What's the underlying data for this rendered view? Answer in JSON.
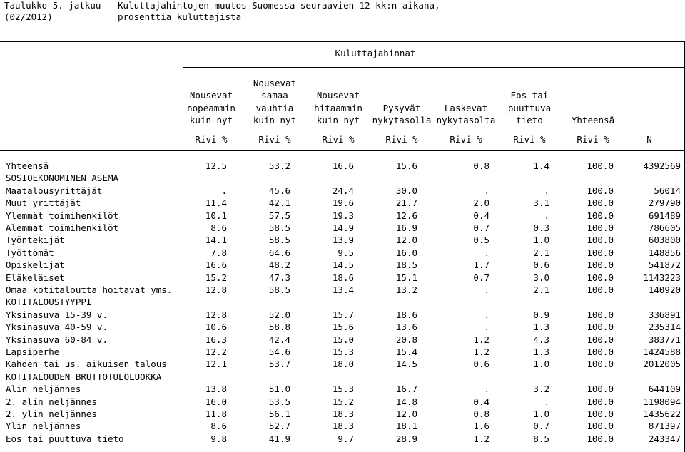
{
  "caption": {
    "table_no": "Taulukko 5. jatkuu",
    "period": "(02/2012)",
    "title_line1": "Kuluttajahintojen muutos Suomessa seuraavien 12 kk:n aikana,",
    "title_line2": "prosenttia kuluttajista"
  },
  "header": {
    "group_label": "Kuluttajahinnat",
    "columns": [
      {
        "lines": [
          "Nousevat",
          "nopeammin",
          "kuin nyt"
        ],
        "unit": "Rivi-%"
      },
      {
        "lines": [
          "Nousevat",
          "samaa",
          "vauhtia",
          "kuin nyt"
        ],
        "unit": "Rivi-%"
      },
      {
        "lines": [
          "Nousevat",
          "hitaammin",
          "kuin nyt"
        ],
        "unit": "Rivi-%"
      },
      {
        "lines": [
          "Pysyvät",
          "nykytasolla"
        ],
        "unit": "Rivi-%"
      },
      {
        "lines": [
          "Laskevat",
          "nykytasolta"
        ],
        "unit": "Rivi-%"
      },
      {
        "lines": [
          "Eos tai",
          "puuttuva",
          "tieto"
        ],
        "unit": "Rivi-%"
      },
      {
        "lines": [
          "Yhteensä"
        ],
        "unit": "Rivi-%"
      },
      {
        "lines": [],
        "unit": "N"
      }
    ]
  },
  "rows": [
    {
      "label": "Yhteensä",
      "values": [
        "12.5",
        "53.2",
        "16.6",
        "15.6",
        "0.8",
        "1.4",
        "100.0",
        "4392569"
      ]
    },
    {
      "label": "SOSIOEKONOMINEN ASEMA",
      "values": []
    },
    {
      "label": "Maatalousyrittäjät",
      "values": [
        ".",
        "45.6",
        "24.4",
        "30.0",
        ".",
        ".",
        "100.0",
        "56014"
      ]
    },
    {
      "label": "Muut yrittäjät",
      "values": [
        "11.4",
        "42.1",
        "19.6",
        "21.7",
        "2.0",
        "3.1",
        "100.0",
        "279790"
      ]
    },
    {
      "label": "Ylemmät toimihenkilöt",
      "values": [
        "10.1",
        "57.5",
        "19.3",
        "12.6",
        "0.4",
        ".",
        "100.0",
        "691489"
      ]
    },
    {
      "label": "Alemmat toimihenkilöt",
      "values": [
        "8.6",
        "58.5",
        "14.9",
        "16.9",
        "0.7",
        "0.3",
        "100.0",
        "786605"
      ]
    },
    {
      "label": "Työntekijät",
      "values": [
        "14.1",
        "58.5",
        "13.9",
        "12.0",
        "0.5",
        "1.0",
        "100.0",
        "603800"
      ]
    },
    {
      "label": "Työttömät",
      "values": [
        "7.8",
        "64.6",
        "9.5",
        "16.0",
        ".",
        "2.1",
        "100.0",
        "148856"
      ]
    },
    {
      "label": "Opiskelijat",
      "values": [
        "16.6",
        "48.2",
        "14.5",
        "18.5",
        "1.7",
        "0.6",
        "100.0",
        "541872"
      ]
    },
    {
      "label": "Eläkeläiset",
      "values": [
        "15.2",
        "47.3",
        "18.6",
        "15.1",
        "0.7",
        "3.0",
        "100.0",
        "1143223"
      ]
    },
    {
      "label": "Omaa kotitaloutta hoitavat yms.",
      "values": [
        "12.8",
        "58.5",
        "13.4",
        "13.2",
        ".",
        "2.1",
        "100.0",
        "140920"
      ]
    },
    {
      "label": "KOTITALOUSTYYPPI",
      "values": []
    },
    {
      "label": "Yksinasuva 15-39 v.",
      "values": [
        "12.8",
        "52.0",
        "15.7",
        "18.6",
        ".",
        "0.9",
        "100.0",
        "336891"
      ]
    },
    {
      "label": "Yksinasuva 40-59 v.",
      "values": [
        "10.6",
        "58.8",
        "15.6",
        "13.6",
        ".",
        "1.3",
        "100.0",
        "235314"
      ]
    },
    {
      "label": "Yksinasuva 60-84 v.",
      "values": [
        "16.3",
        "42.4",
        "15.0",
        "20.8",
        "1.2",
        "4.3",
        "100.0",
        "383771"
      ]
    },
    {
      "label": "Lapsiperhe",
      "values": [
        "12.2",
        "54.6",
        "15.3",
        "15.4",
        "1.2",
        "1.3",
        "100.0",
        "1424588"
      ]
    },
    {
      "label": "Kahden tai us. aikuisen talous",
      "values": [
        "12.1",
        "53.7",
        "18.0",
        "14.5",
        "0.6",
        "1.0",
        "100.0",
        "2012005"
      ]
    },
    {
      "label": "KOTITALOUDEN BRUTTOTULOLUOKKA",
      "values": []
    },
    {
      "label": "Alin neljännes",
      "values": [
        "13.8",
        "51.0",
        "15.3",
        "16.7",
        ".",
        "3.2",
        "100.0",
        "644109"
      ]
    },
    {
      "label": "2. alin neljännes",
      "values": [
        "16.0",
        "53.5",
        "15.2",
        "14.8",
        "0.4",
        ".",
        "100.0",
        "1198094"
      ]
    },
    {
      "label": "2. ylin neljännes",
      "values": [
        "11.8",
        "56.1",
        "18.3",
        "12.0",
        "0.8",
        "1.0",
        "100.0",
        "1435622"
      ]
    },
    {
      "label": "Ylin neljännes",
      "values": [
        "8.6",
        "52.7",
        "18.3",
        "18.1",
        "1.6",
        "0.7",
        "100.0",
        "871397"
      ]
    },
    {
      "label": "Eos tai puuttuva tieto",
      "values": [
        "9.8",
        "41.9",
        "9.7",
        "28.9",
        "1.2",
        "8.5",
        "100.0",
        "243347"
      ]
    }
  ]
}
